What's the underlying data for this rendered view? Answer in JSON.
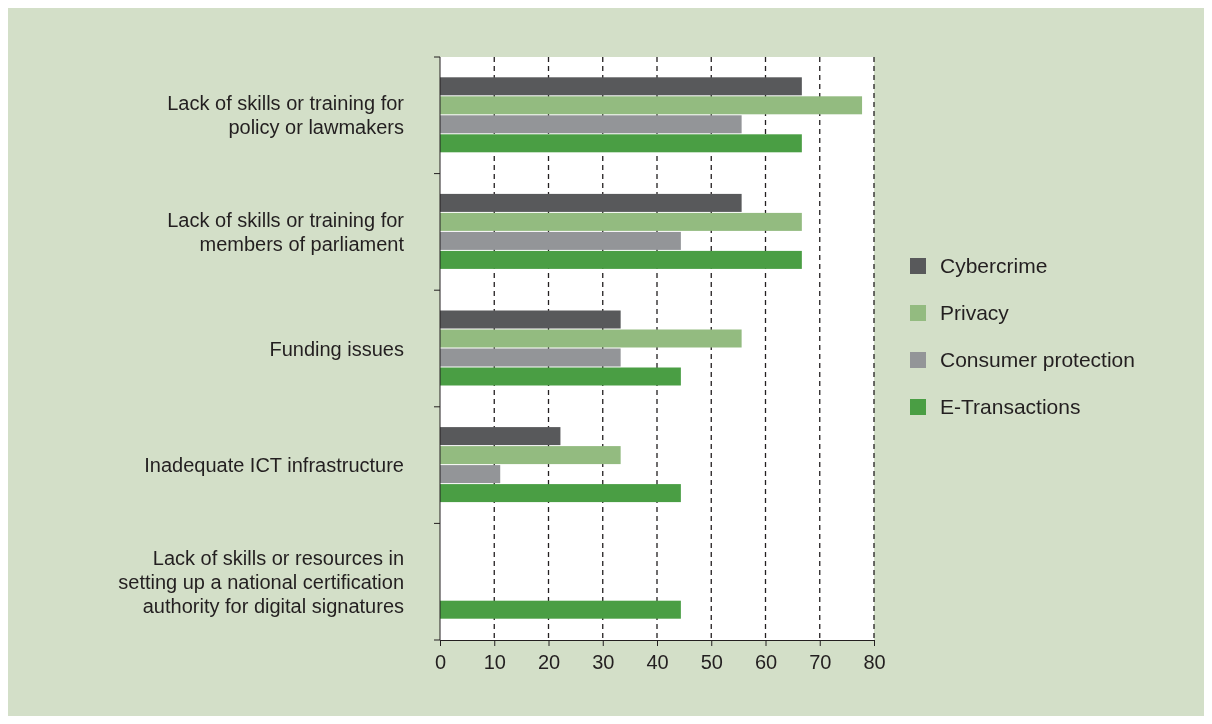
{
  "chart_data": {
    "type": "bar",
    "orientation": "horizontal",
    "categories": [
      "Lack of skills or training for policy or lawmakers",
      "Lack of skills or training for members of parliament",
      "Funding issues",
      "Inadequate ICT infrastructure",
      "Lack of skills or resources in setting up a national certification authority for digital signatures"
    ],
    "series": [
      {
        "name": "Cybercrime",
        "color": "#58595b",
        "values": [
          66.7,
          55.6,
          33.3,
          22.2,
          null
        ]
      },
      {
        "name": "Privacy",
        "color": "#93bb80",
        "values": [
          77.8,
          66.7,
          55.6,
          33.3,
          null
        ]
      },
      {
        "name": "Consumer protection",
        "color": "#939598",
        "values": [
          55.6,
          44.4,
          33.3,
          11.1,
          null
        ]
      },
      {
        "name": "E-Transactions",
        "color": "#4a9e44",
        "values": [
          66.7,
          66.7,
          44.4,
          44.4,
          44.4
        ]
      }
    ],
    "xlim": [
      0,
      80
    ],
    "xticks": [
      0,
      10,
      20,
      30,
      40,
      50,
      60,
      70,
      80
    ],
    "grid": "x",
    "legend": "right"
  }
}
